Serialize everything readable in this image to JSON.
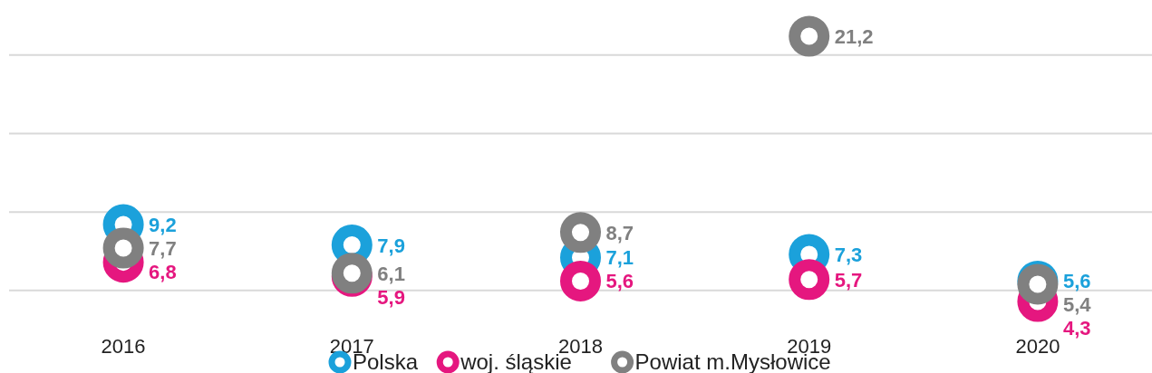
{
  "chart_data": {
    "type": "scatter",
    "categories": [
      "2016",
      "2017",
      "2018",
      "2019",
      "2020"
    ],
    "series": [
      {
        "name": "Polska",
        "color": "#1ba1db",
        "values": [
          9.2,
          7.9,
          7.1,
          7.3,
          5.6
        ],
        "value_labels": [
          "9,2",
          "7,9",
          "7,1",
          "7,3",
          "5,6"
        ]
      },
      {
        "name": "woj. śląskie",
        "color": "#e5177f",
        "values": [
          6.8,
          5.9,
          5.6,
          5.7,
          4.3
        ],
        "value_labels": [
          "6,8",
          "5,9",
          "5,6",
          "5,7",
          "4,3"
        ]
      },
      {
        "name": "Powiat m.Mysłowice",
        "color": "#808080",
        "values": [
          7.7,
          6.1,
          8.7,
          21.2,
          5.4
        ],
        "value_labels": [
          "7,7",
          "6,1",
          "8,7",
          "21,2",
          "5,4"
        ]
      }
    ],
    "grid": "y",
    "legend": "bottom",
    "marker": "circle",
    "tick_labels": "x"
  }
}
